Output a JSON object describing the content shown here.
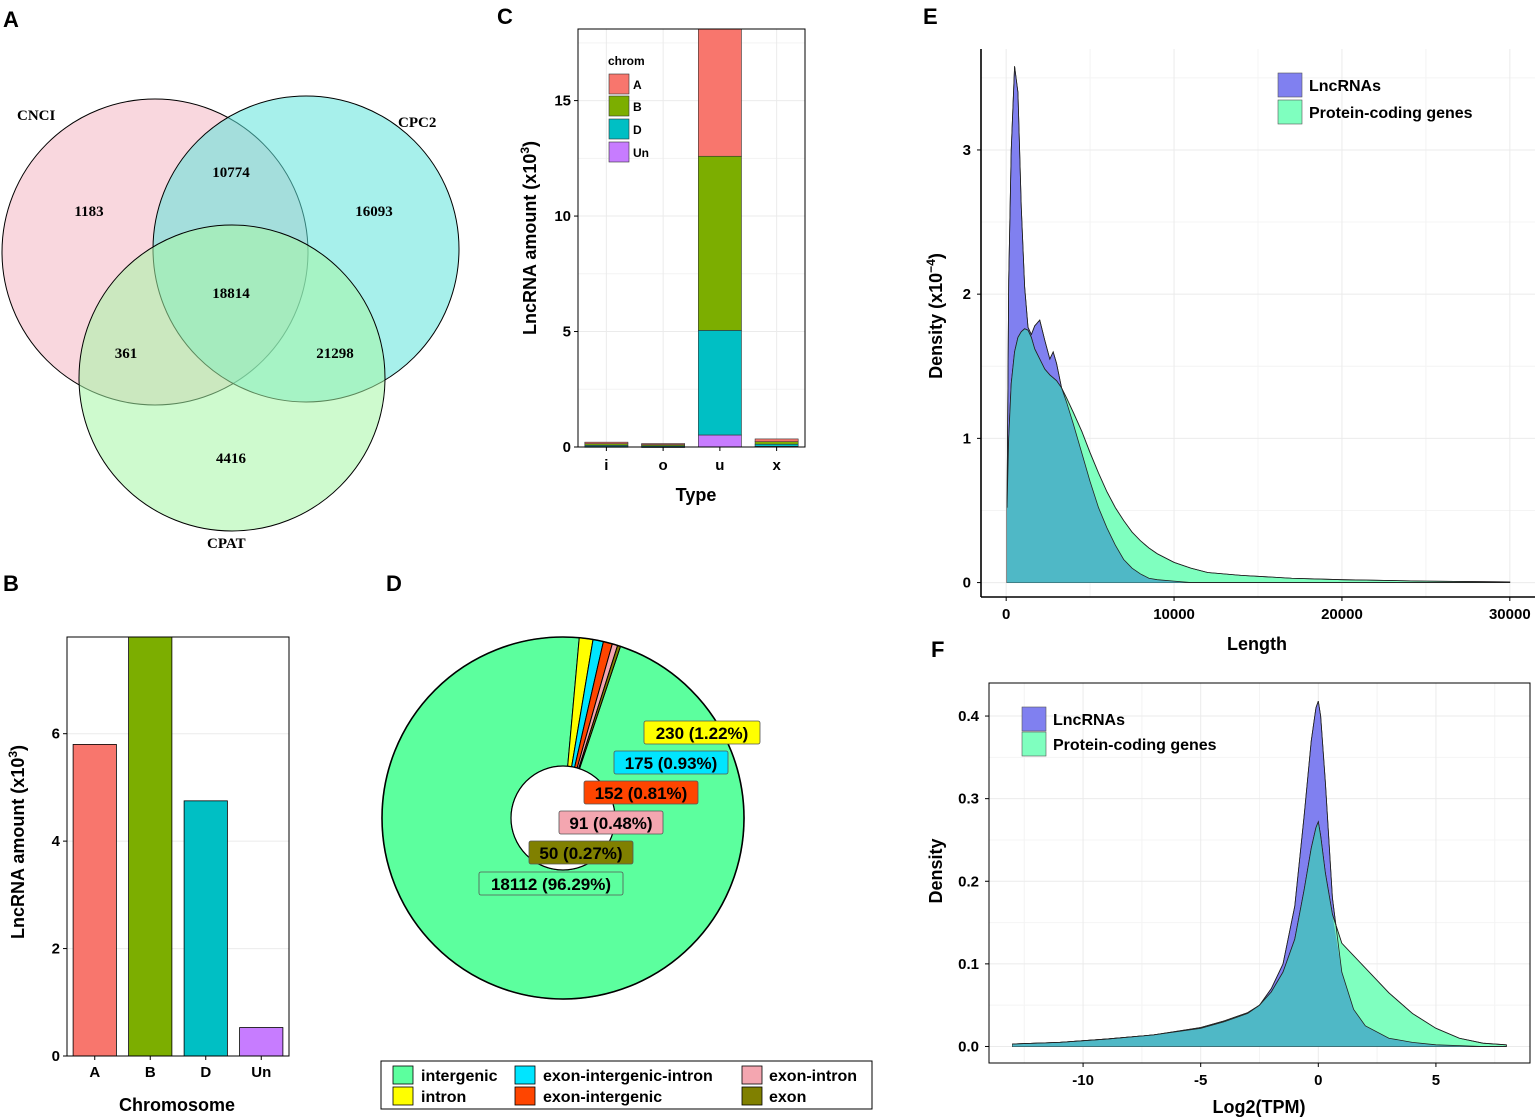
{
  "panel_labels": [
    "A",
    "B",
    "C",
    "D",
    "E",
    "F"
  ],
  "colors": {
    "A": "#F8766D",
    "B": "#7CAE00",
    "D": "#00BFC4",
    "Un": "#C77CFF",
    "lnc": "#8080F0",
    "pc": "#7FFFBF",
    "overlap": "#4FB8C6"
  },
  "chart_data": [
    {
      "panel": "A",
      "type": "venn",
      "sets": [
        "CNCI",
        "CPC2",
        "CPAT"
      ],
      "regions": {
        "CNCI_only": "1183",
        "CPC2_only": "16093",
        "CPAT_only": "4416",
        "CNCI_CPC2": "10774",
        "CNCI_CPAT": "361",
        "CPC2_CPAT": "21298",
        "all": "18814"
      }
    },
    {
      "panel": "B",
      "type": "bar",
      "title": "",
      "xlabel": "Chromosome",
      "ylabel": "LncRNA amount (x10",
      "ylabel_exp": "3",
      "categories": [
        "A",
        "B",
        "D",
        "Un"
      ],
      "values": [
        5.8,
        7.8,
        4.75,
        0.53
      ],
      "ylim": [
        0,
        7.8
      ],
      "yticks": [
        "0",
        "2",
        "4",
        "6"
      ]
    },
    {
      "panel": "C",
      "type": "bar",
      "stacked": true,
      "xlabel": "Type",
      "ylabel": "LncRNA amount (x10",
      "ylabel_exp": "3",
      "legend_title": "chrom",
      "legend": [
        "A",
        "B",
        "D",
        "Un"
      ],
      "categories": [
        "i",
        "o",
        "u",
        "x"
      ],
      "series": [
        {
          "name": "Un",
          "values": [
            0.02,
            0.01,
            0.52,
            0.03
          ]
        },
        {
          "name": "D",
          "values": [
            0.05,
            0.04,
            4.53,
            0.09
          ]
        },
        {
          "name": "B",
          "values": [
            0.07,
            0.05,
            7.54,
            0.11
          ]
        },
        {
          "name": "A",
          "values": [
            0.07,
            0.05,
            5.51,
            0.12
          ]
        }
      ],
      "ylim": [
        0,
        18.1
      ],
      "yticks": [
        "0",
        "5",
        "10",
        "15"
      ]
    },
    {
      "panel": "D",
      "type": "pie",
      "donut": true,
      "slices": [
        {
          "name": "intergenic",
          "value": 18112,
          "label": "18112 (96.29%)",
          "color": "#5CFF9E"
        },
        {
          "name": "intron",
          "value": 230,
          "label": "230 (1.22%)",
          "color": "#FFFF00"
        },
        {
          "name": "exon-intergenic-intron",
          "value": 175,
          "label": "175 (0.93%)",
          "color": "#00E5FF"
        },
        {
          "name": "exon-intergenic",
          "value": 152,
          "label": "152 (0.81%)",
          "color": "#FF4500"
        },
        {
          "name": "exon-intron",
          "value": 91,
          "label": "91 (0.48%)",
          "color": "#F4A6B0"
        },
        {
          "name": "exon",
          "value": 50,
          "label": "50 (0.27%)",
          "color": "#808000"
        }
      ]
    },
    {
      "panel": "E",
      "type": "area",
      "xlabel": "Length",
      "ylabel": "Density (x10",
      "ylabel_exp": "−4",
      "legend": [
        "LncRNAs",
        "Protein-coding genes"
      ],
      "xlim": [
        -1500,
        31500
      ],
      "ylim": [
        -0.1,
        3.7
      ],
      "xticks": [
        "0",
        "10000",
        "20000",
        "30000"
      ],
      "yticks": [
        "0",
        "1",
        "2",
        "3"
      ],
      "series": [
        {
          "name": "LncRNAs",
          "x": [
            50,
            150,
            300,
            500,
            700,
            900,
            1100,
            1300,
            1500,
            1700,
            2000,
            2300,
            2600,
            2800,
            3000,
            3300,
            3600,
            4000,
            4500,
            5000,
            5500,
            6000,
            6500,
            7000,
            7500,
            8000,
            8500,
            9000,
            10000,
            11000,
            12000,
            14000,
            17000,
            20000,
            25000,
            30000
          ],
          "y": [
            0.52,
            2.1,
            3.0,
            3.58,
            3.4,
            2.6,
            2.05,
            1.77,
            1.72,
            1.78,
            1.82,
            1.68,
            1.55,
            1.6,
            1.52,
            1.35,
            1.25,
            1.1,
            0.9,
            0.7,
            0.52,
            0.38,
            0.26,
            0.16,
            0.1,
            0.06,
            0.03,
            0.02,
            0.01,
            0.0,
            0.0,
            0.0,
            0.0,
            0.0,
            0.0,
            0.0
          ]
        },
        {
          "name": "Protein-coding genes",
          "x": [
            50,
            150,
            300,
            500,
            700,
            900,
            1100,
            1300,
            1500,
            1700,
            2000,
            2300,
            2600,
            2800,
            3000,
            3300,
            3600,
            4000,
            4500,
            5000,
            5500,
            6000,
            6500,
            7000,
            7500,
            8000,
            8500,
            9000,
            10000,
            11000,
            12000,
            14000,
            17000,
            20000,
            25000,
            30000
          ],
          "y": [
            0.52,
            1.0,
            1.38,
            1.6,
            1.7,
            1.74,
            1.76,
            1.75,
            1.7,
            1.62,
            1.55,
            1.48,
            1.44,
            1.42,
            1.4,
            1.35,
            1.28,
            1.18,
            1.05,
            0.9,
            0.76,
            0.63,
            0.52,
            0.43,
            0.35,
            0.29,
            0.24,
            0.2,
            0.14,
            0.1,
            0.07,
            0.05,
            0.03,
            0.02,
            0.01,
            0.005
          ]
        }
      ]
    },
    {
      "panel": "F",
      "type": "area",
      "xlabel": "Log2(TPM)",
      "ylabel": "Density",
      "legend": [
        "LncRNAs",
        "Protein-coding genes"
      ],
      "xlim": [
        -14,
        9
      ],
      "ylim": [
        -0.02,
        0.44
      ],
      "xticks": [
        "-10",
        "-5",
        "0",
        "5"
      ],
      "yticks": [
        "0.0",
        "0.1",
        "0.2",
        "0.3",
        "0.4"
      ],
      "series": [
        {
          "name": "LncRNAs",
          "x": [
            -13,
            -11,
            -9,
            -7,
            -5,
            -4,
            -3,
            -2.5,
            -2,
            -1.5,
            -1,
            -0.6,
            -0.3,
            -0.1,
            0,
            0.1,
            0.3,
            0.6,
            1,
            1.5,
            2,
            3,
            4,
            5,
            6,
            7,
            8
          ],
          "y": [
            0.003,
            0.005,
            0.009,
            0.014,
            0.022,
            0.03,
            0.04,
            0.05,
            0.07,
            0.1,
            0.17,
            0.28,
            0.37,
            0.41,
            0.418,
            0.4,
            0.32,
            0.18,
            0.09,
            0.045,
            0.025,
            0.01,
            0.005,
            0.002,
            0.001,
            0.0,
            0.0
          ]
        },
        {
          "name": "Protein-coding genes",
          "x": [
            -13,
            -11,
            -9,
            -7,
            -5,
            -4,
            -3,
            -2.5,
            -2,
            -1.5,
            -1,
            -0.6,
            -0.3,
            -0.1,
            0,
            0.1,
            0.3,
            0.6,
            1,
            1.5,
            2,
            3,
            4,
            5,
            6,
            7,
            8
          ],
          "y": [
            0.003,
            0.005,
            0.009,
            0.014,
            0.023,
            0.031,
            0.041,
            0.05,
            0.066,
            0.09,
            0.13,
            0.19,
            0.24,
            0.265,
            0.272,
            0.255,
            0.21,
            0.16,
            0.125,
            0.11,
            0.095,
            0.065,
            0.04,
            0.022,
            0.01,
            0.004,
            0.002
          ]
        }
      ]
    }
  ]
}
